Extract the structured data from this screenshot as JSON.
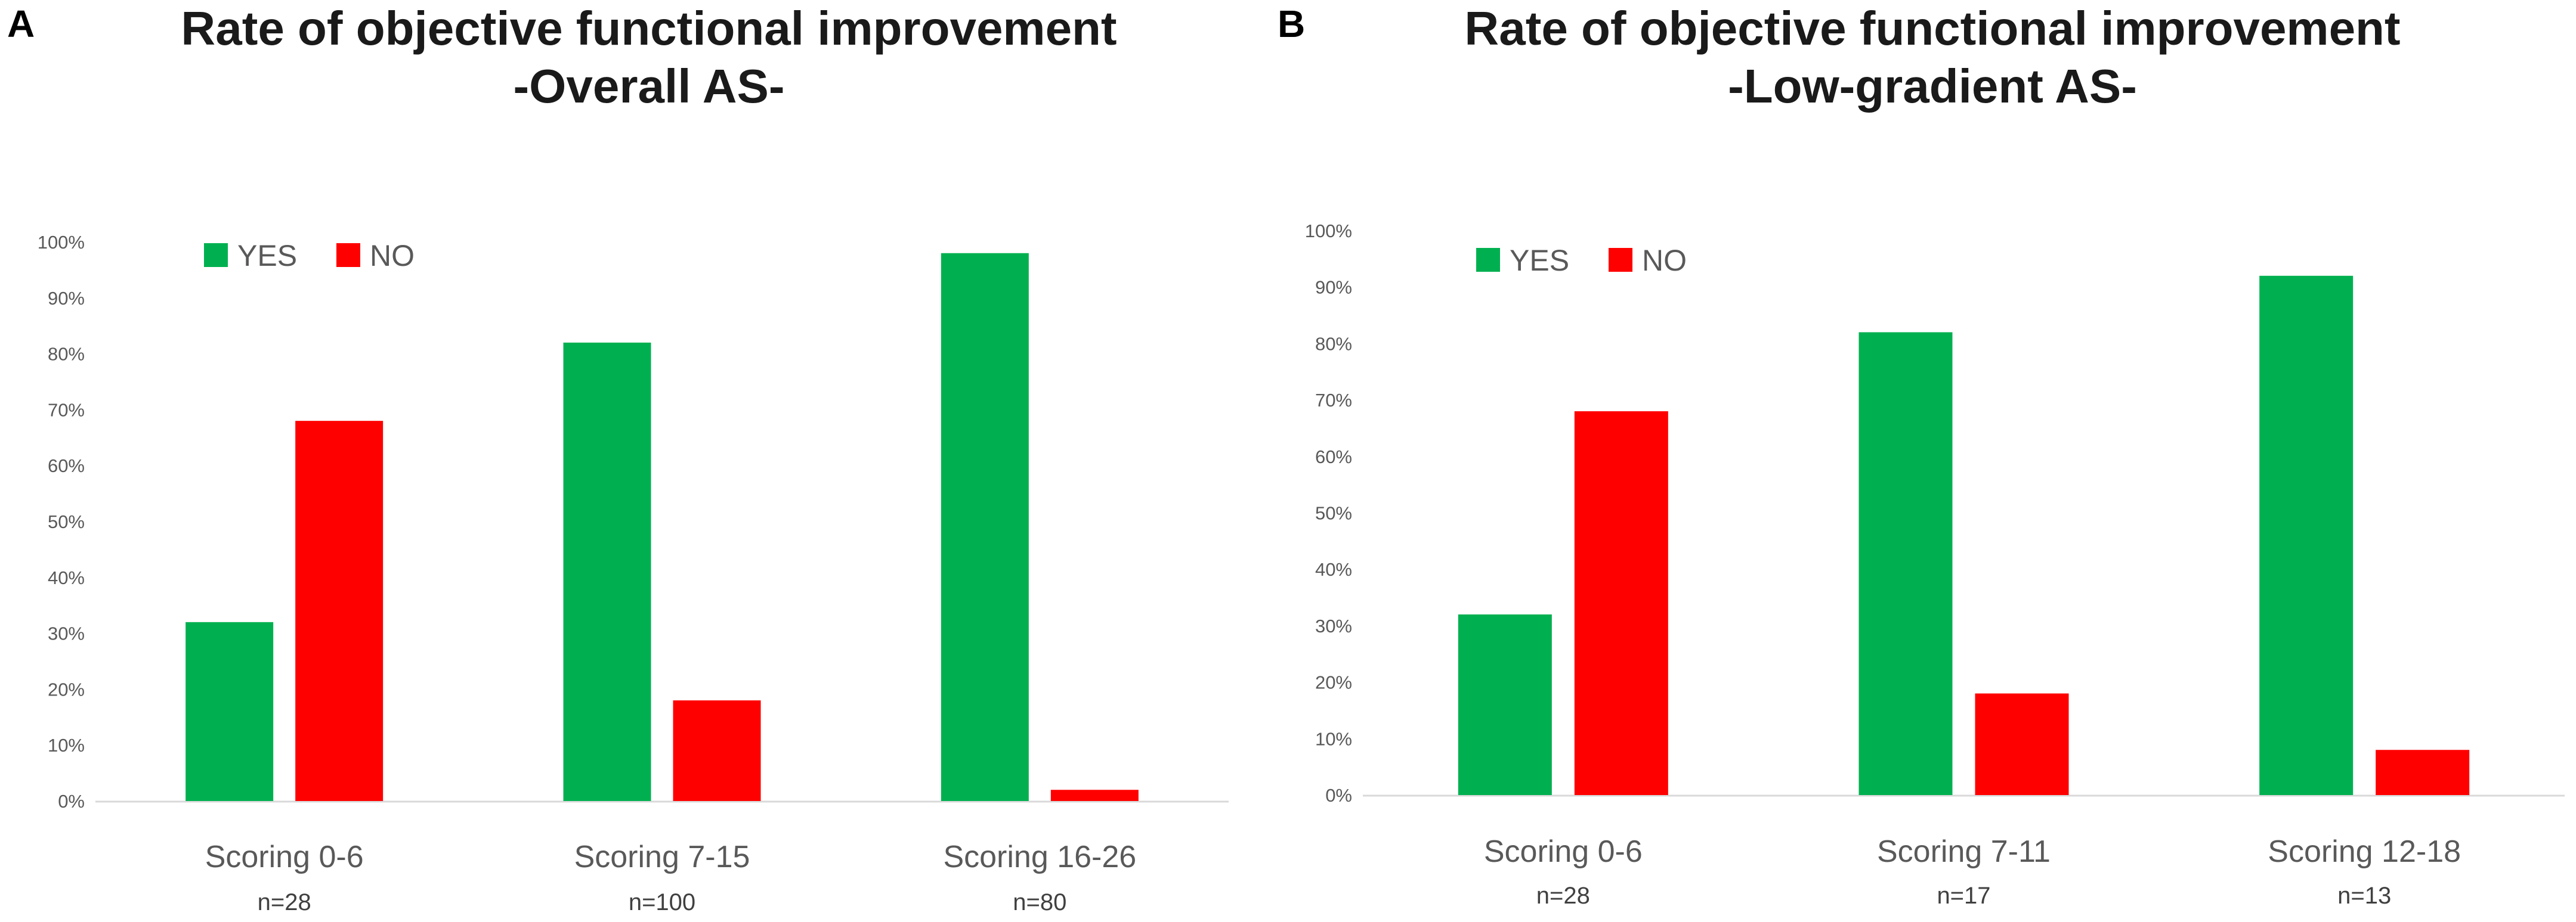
{
  "colors": {
    "yes": "#00b050",
    "no": "#ff0000",
    "axis": "#d9d9d9",
    "text": "#595959"
  },
  "chart_data": [
    {
      "panel": "A",
      "type": "bar",
      "title": [
        "Rate of objective functional improvement",
        "-Overall AS-"
      ],
      "categories": [
        "Scoring 0-6",
        "Scoring 7-15",
        "Scoring 16-26"
      ],
      "n_labels": [
        "n=28",
        "n=100",
        "n=80"
      ],
      "series": [
        {
          "name": "YES",
          "values": [
            32,
            82,
            98
          ]
        },
        {
          "name": "NO",
          "values": [
            68,
            18,
            2
          ]
        }
      ],
      "ylim": [
        0,
        100
      ],
      "yticks": [
        "0%",
        "10%",
        "20%",
        "30%",
        "40%",
        "50%",
        "60%",
        "70%",
        "80%",
        "90%",
        "100%"
      ],
      "legend_position": "top-left"
    },
    {
      "panel": "B",
      "type": "bar",
      "title": [
        "Rate of objective functional improvement",
        "-Low-gradient AS-"
      ],
      "categories": [
        "Scoring 0-6",
        "Scoring 7-11",
        "Scoring 12-18"
      ],
      "n_labels": [
        "n=28",
        "n=17",
        "n=13"
      ],
      "series": [
        {
          "name": "YES",
          "values": [
            32,
            82,
            92
          ]
        },
        {
          "name": "NO",
          "values": [
            68,
            18,
            8
          ]
        }
      ],
      "ylim": [
        0,
        100
      ],
      "yticks": [
        "0%",
        "10%",
        "20%",
        "30%",
        "40%",
        "50%",
        "60%",
        "70%",
        "80%",
        "90%",
        "100%"
      ],
      "legend_position": "top-left"
    }
  ]
}
